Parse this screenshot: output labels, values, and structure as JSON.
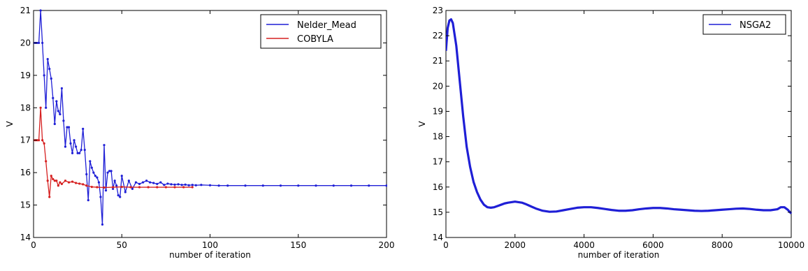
{
  "chart_data": [
    {
      "type": "line",
      "xlabel": "number of iteration",
      "ylabel": "V",
      "xlim": [
        0,
        200
      ],
      "ylim": [
        14,
        21
      ],
      "xticks": [
        0,
        50,
        100,
        150,
        200
      ],
      "yticks": [
        14,
        15,
        16,
        17,
        18,
        19,
        20,
        21
      ],
      "legend_position": "top-right",
      "markers": true,
      "series": [
        {
          "name": "Nelder_Mead",
          "color": "#1f1fd6",
          "x": [
            0,
            1,
            2,
            3,
            4,
            5,
            6,
            7,
            8,
            9,
            10,
            11,
            12,
            13,
            14,
            15,
            16,
            17,
            18,
            19,
            20,
            21,
            22,
            23,
            24,
            25,
            26,
            27,
            28,
            29,
            30,
            31,
            32,
            33,
            34,
            35,
            36,
            37,
            38,
            39,
            40,
            41,
            42,
            43,
            44,
            45,
            46,
            47,
            48,
            49,
            50,
            52,
            54,
            56,
            58,
            60,
            62,
            64,
            66,
            68,
            70,
            72,
            74,
            76,
            78,
            80,
            82,
            84,
            86,
            88,
            90,
            92,
            95,
            100,
            105,
            110,
            120,
            130,
            140,
            150,
            160,
            170,
            180,
            190,
            200
          ],
          "y": [
            20,
            20,
            20,
            20,
            21,
            20,
            19,
            18,
            19.5,
            19.2,
            18.9,
            18.3,
            17.5,
            18.2,
            17.9,
            17.8,
            18.6,
            17.6,
            16.8,
            17.4,
            17.4,
            16.9,
            16.6,
            17,
            16.8,
            16.6,
            16.6,
            16.7,
            17.35,
            16.7,
            15.95,
            15.15,
            16.35,
            16.15,
            16,
            15.9,
            15.85,
            15.7,
            15.25,
            14.4,
            16.85,
            15.45,
            16,
            16.05,
            16.05,
            15.5,
            15.75,
            15.6,
            15.3,
            15.25,
            15.9,
            15.4,
            15.75,
            15.5,
            15.7,
            15.65,
            15.7,
            15.75,
            15.7,
            15.68,
            15.65,
            15.7,
            15.62,
            15.66,
            15.64,
            15.63,
            15.64,
            15.62,
            15.63,
            15.61,
            15.62,
            15.61,
            15.62,
            15.61,
            15.6,
            15.6,
            15.6,
            15.6,
            15.6,
            15.6,
            15.6,
            15.6,
            15.6,
            15.6,
            15.6
          ]
        },
        {
          "name": "COBYLA",
          "color": "#d62020",
          "x": [
            0,
            1,
            2,
            3,
            4,
            5,
            6,
            7,
            8,
            9,
            10,
            11,
            12,
            13,
            14,
            15,
            16,
            18,
            20,
            22,
            24,
            26,
            28,
            30,
            33,
            36,
            40,
            45,
            50,
            55,
            60,
            65,
            70,
            75,
            80,
            85,
            90
          ],
          "y": [
            17,
            17,
            17,
            17,
            18,
            17,
            16.9,
            16.35,
            15.75,
            15.25,
            15.9,
            15.8,
            15.75,
            15.75,
            15.6,
            15.7,
            15.65,
            15.75,
            15.7,
            15.72,
            15.68,
            15.66,
            15.64,
            15.6,
            15.56,
            15.55,
            15.54,
            15.55,
            15.56,
            15.55,
            15.55,
            15.55,
            15.55,
            15.55,
            15.55,
            15.55,
            15.55
          ]
        }
      ]
    },
    {
      "type": "line",
      "xlabel": "number of iteration",
      "ylabel": "V",
      "xlim": [
        0,
        10000
      ],
      "ylim": [
        14,
        23
      ],
      "xticks": [
        0,
        2000,
        4000,
        6000,
        8000,
        10000
      ],
      "yticks": [
        14,
        15,
        16,
        17,
        18,
        19,
        20,
        21,
        22,
        23
      ],
      "legend_position": "top-right",
      "markers": false,
      "series": [
        {
          "name": "NSGA2",
          "color": "#1f1fd6",
          "x": [
            0,
            50,
            100,
            150,
            200,
            300,
            400,
            500,
            600,
            700,
            800,
            900,
            1000,
            1100,
            1200,
            1300,
            1400,
            1500,
            1600,
            1700,
            1800,
            1900,
            2000,
            2100,
            2200,
            2300,
            2400,
            2600,
            2800,
            3000,
            3200,
            3400,
            3600,
            3800,
            4000,
            4200,
            4400,
            4600,
            4800,
            5000,
            5200,
            5400,
            5600,
            5800,
            6000,
            6200,
            6400,
            6600,
            6800,
            7000,
            7200,
            7400,
            7600,
            7800,
            8000,
            8200,
            8400,
            8600,
            8800,
            9000,
            9200,
            9400,
            9600,
            9700,
            9800,
            9900,
            10000
          ],
          "y": [
            21.4,
            22.3,
            22.6,
            22.65,
            22.5,
            21.6,
            20.2,
            18.8,
            17.6,
            16.8,
            16.2,
            15.8,
            15.5,
            15.3,
            15.2,
            15.18,
            15.2,
            15.25,
            15.3,
            15.35,
            15.38,
            15.4,
            15.42,
            15.4,
            15.38,
            15.33,
            15.27,
            15.15,
            15.06,
            15.02,
            15.03,
            15.08,
            15.13,
            15.18,
            15.2,
            15.2,
            15.17,
            15.13,
            15.09,
            15.06,
            15.06,
            15.08,
            15.12,
            15.15,
            15.17,
            15.17,
            15.15,
            15.12,
            15.1,
            15.08,
            15.06,
            15.05,
            15.06,
            15.08,
            15.1,
            15.12,
            15.14,
            15.15,
            15.13,
            15.1,
            15.08,
            15.08,
            15.12,
            15.2,
            15.2,
            15.1,
            14.95
          ]
        }
      ]
    }
  ]
}
